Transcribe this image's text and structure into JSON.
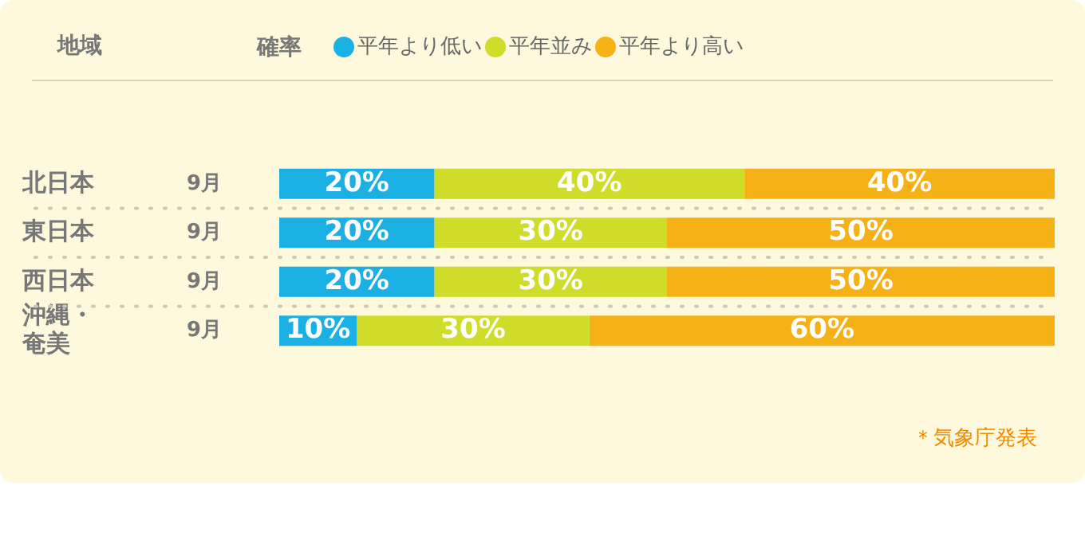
{
  "chart_data": {
    "type": "bar",
    "orientation": "horizontal",
    "stacked": true,
    "ylabel": "地域",
    "legend_title": "確率",
    "legend": "top",
    "categories": [
      "北日本",
      "東日本",
      "西日本",
      "沖縄・奄美"
    ],
    "series": [
      {
        "name": "平年より低い",
        "color": "#1ab0e3",
        "values": [
          20,
          20,
          20,
          10
        ],
        "value_labels": [
          "20%",
          "20%",
          "20%",
          "10%"
        ]
      },
      {
        "name": "平年並み",
        "color": "#cfdc29",
        "values": [
          40,
          30,
          30,
          30
        ],
        "value_labels": [
          "40%",
          "30%",
          "30%",
          "30%"
        ]
      },
      {
        "name": "平年より高い",
        "color": "#f5b116",
        "values": [
          40,
          50,
          50,
          60
        ],
        "value_labels": [
          "40%",
          "50%",
          "50%",
          "60%"
        ]
      }
    ],
    "tick_labels": "y",
    "grid": "y",
    "annotations": [
      "9月",
      "9月",
      "9月",
      "9月",
      "＊気象庁発表"
    ]
  }
}
